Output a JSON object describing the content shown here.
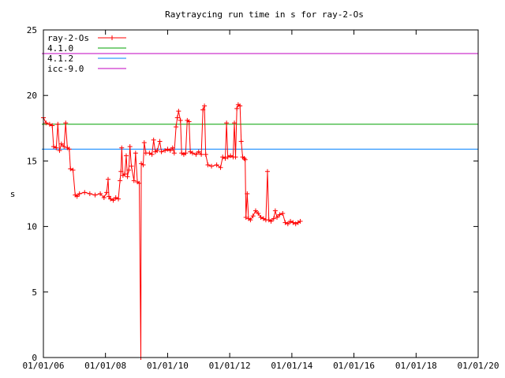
{
  "chart_data": {
    "type": "line",
    "title": "Raytraycing run time in s for ray-2-Os",
    "xlabel": "",
    "ylabel": "s",
    "xlim": [
      "01/01/06",
      "01/01/20"
    ],
    "ylim": [
      0,
      25
    ],
    "grid": false,
    "legend_position": "top-left",
    "x_tick_labels": [
      "01/01/06",
      "01/01/08",
      "01/01/10",
      "01/01/12",
      "01/01/14",
      "01/01/16",
      "01/01/18",
      "01/01/20"
    ],
    "y_tick_labels": [
      "0",
      "5",
      "10",
      "15",
      "20",
      "25"
    ],
    "series": [
      {
        "name": "ray-2-Os",
        "color": "#ff0000",
        "style": "linespoints",
        "points": [
          [
            "01/01/06",
            18.3
          ],
          [
            "02/01/06",
            17.9
          ],
          [
            "03/15/06",
            17.8
          ],
          [
            "04/15/06",
            17.7
          ],
          [
            "05/01/06",
            16.1
          ],
          [
            "06/01/06",
            16.0
          ],
          [
            "06/20/06",
            17.8
          ],
          [
            "07/10/06",
            15.8
          ],
          [
            "08/01/06",
            16.3
          ],
          [
            "09/01/06",
            16.1
          ],
          [
            "09/20/06",
            17.9
          ],
          [
            "10/10/06",
            16.0
          ],
          [
            "11/01/06",
            15.9
          ],
          [
            "11/15/06",
            14.4
          ],
          [
            "12/15/06",
            14.3
          ],
          [
            "01/10/07",
            12.4
          ],
          [
            "02/01/07",
            12.3
          ],
          [
            "03/01/07",
            12.5
          ],
          [
            "05/01/07",
            12.6
          ],
          [
            "07/01/07",
            12.5
          ],
          [
            "09/01/07",
            12.4
          ],
          [
            "11/01/07",
            12.5
          ],
          [
            "12/15/07",
            12.2
          ],
          [
            "01/15/08",
            12.6
          ],
          [
            "02/01/08",
            13.6
          ],
          [
            "02/10/08",
            12.3
          ],
          [
            "03/01/08",
            12.1
          ],
          [
            "04/01/08",
            12.0
          ],
          [
            "05/01/08",
            12.2
          ],
          [
            "06/01/08",
            12.1
          ],
          [
            "06/20/08",
            13.5
          ],
          [
            "07/01/08",
            14.2
          ],
          [
            "07/10/08",
            16.0
          ],
          [
            "07/25/08",
            13.9
          ],
          [
            "08/15/08",
            14.0
          ],
          [
            "09/01/08",
            15.4
          ],
          [
            "09/15/08",
            13.8
          ],
          [
            "10/01/08",
            14.3
          ],
          [
            "10/15/08",
            16.1
          ],
          [
            "11/01/08",
            14.6
          ],
          [
            "12/01/08",
            13.5
          ],
          [
            "12/20/08",
            15.6
          ],
          [
            "01/10/09",
            13.4
          ],
          [
            "02/01/09",
            13.3
          ],
          [
            "02/20/09",
            0.0
          ],
          [
            "02/25/09",
            14.8
          ],
          [
            "03/20/09",
            14.7
          ],
          [
            "04/01/09",
            16.4
          ],
          [
            "04/20/09",
            15.6
          ],
          [
            "06/01/09",
            15.6
          ],
          [
            "07/01/09",
            15.5
          ],
          [
            "07/20/09",
            16.6
          ],
          [
            "08/10/09",
            15.7
          ],
          [
            "09/01/09",
            15.8
          ],
          [
            "10/01/09",
            16.5
          ],
          [
            "10/20/09",
            15.7
          ],
          [
            "12/01/09",
            15.8
          ],
          [
            "01/01/10",
            15.9
          ],
          [
            "02/01/10",
            15.8
          ],
          [
            "03/01/10",
            16.0
          ],
          [
            "03/20/10",
            15.6
          ],
          [
            "04/10/10",
            17.6
          ],
          [
            "04/25/10",
            18.3
          ],
          [
            "05/10/10",
            18.8
          ],
          [
            "06/01/10",
            18.1
          ],
          [
            "06/15/10",
            15.6
          ],
          [
            "07/10/10",
            15.5
          ],
          [
            "08/01/10",
            15.6
          ],
          [
            "08/20/10",
            18.1
          ],
          [
            "09/10/10",
            18.0
          ],
          [
            "09/25/10",
            15.7
          ],
          [
            "10/20/10",
            15.6
          ],
          [
            "12/01/10",
            15.5
          ],
          [
            "01/01/11",
            15.7
          ],
          [
            "02/01/11",
            15.5
          ],
          [
            "02/20/11",
            18.9
          ],
          [
            "03/10/11",
            19.2
          ],
          [
            "03/25/11",
            15.5
          ],
          [
            "04/20/11",
            14.7
          ],
          [
            "06/01/11",
            14.6
          ],
          [
            "08/01/11",
            14.7
          ],
          [
            "09/15/11",
            14.5
          ],
          [
            "10/10/11",
            15.3
          ],
          [
            "11/10/11",
            15.2
          ],
          [
            "11/25/11",
            17.9
          ],
          [
            "12/10/11",
            15.3
          ],
          [
            "01/10/12",
            15.4
          ],
          [
            "02/10/12",
            15.3
          ],
          [
            "02/25/12",
            17.9
          ],
          [
            "03/10/12",
            15.3
          ],
          [
            "03/25/12",
            19.0
          ],
          [
            "04/10/12",
            19.3
          ],
          [
            "05/01/12",
            19.2
          ],
          [
            "05/15/12",
            16.5
          ],
          [
            "06/01/12",
            15.3
          ],
          [
            "06/20/12",
            15.2
          ],
          [
            "07/01/12",
            15.1
          ],
          [
            "07/10/12",
            10.7
          ],
          [
            "07/25/12",
            12.5
          ],
          [
            "08/10/12",
            10.6
          ],
          [
            "09/01/12",
            10.5
          ],
          [
            "10/01/12",
            10.8
          ],
          [
            "11/01/12",
            11.2
          ],
          [
            "12/01/12",
            11.0
          ],
          [
            "01/01/13",
            10.7
          ],
          [
            "02/01/13",
            10.6
          ],
          [
            "03/01/13",
            10.5
          ],
          [
            "03/20/13",
            14.2
          ],
          [
            "04/05/13",
            10.5
          ],
          [
            "05/01/13",
            10.4
          ],
          [
            "06/01/13",
            10.6
          ],
          [
            "06/20/13",
            11.2
          ],
          [
            "07/10/13",
            10.7
          ],
          [
            "08/10/13",
            10.9
          ],
          [
            "09/15/13",
            11.0
          ],
          [
            "10/15/13",
            10.3
          ],
          [
            "11/15/13",
            10.2
          ],
          [
            "12/15/13",
            10.4
          ],
          [
            "01/15/14",
            10.3
          ],
          [
            "02/15/14",
            10.2
          ],
          [
            "03/15/14",
            10.3
          ],
          [
            "04/10/14",
            10.4
          ]
        ]
      },
      {
        "name": "4.1.0",
        "color": "#00a000",
        "style": "constant",
        "value": 17.8
      },
      {
        "name": "4.1.2",
        "color": "#0080ff",
        "style": "constant",
        "value": 15.9
      },
      {
        "name": "icc-9.0",
        "color": "#c000c0",
        "style": "constant",
        "value": 23.2
      }
    ]
  }
}
